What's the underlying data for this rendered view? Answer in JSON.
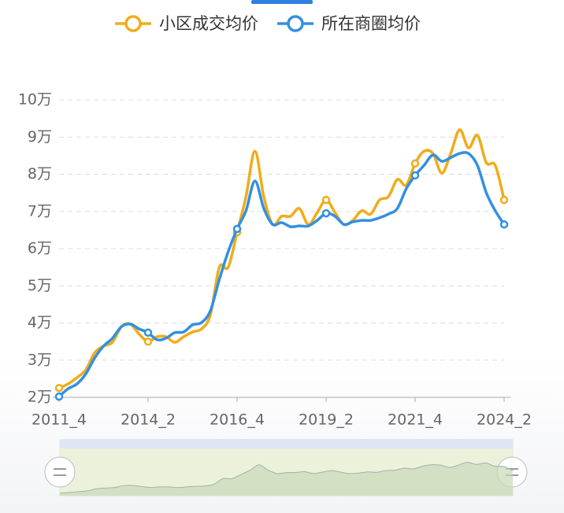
{
  "chart_data": {
    "type": "line",
    "categories": [
      "2011_4",
      null,
      null,
      null,
      null,
      null,
      null,
      null,
      null,
      null,
      "2014_2",
      null,
      null,
      null,
      null,
      null,
      null,
      null,
      null,
      null,
      "2016_4",
      null,
      null,
      null,
      null,
      null,
      null,
      null,
      null,
      null,
      "2019_2",
      null,
      null,
      null,
      null,
      null,
      null,
      null,
      null,
      null,
      "2021_4",
      null,
      null,
      null,
      null,
      null,
      null,
      null,
      null,
      null,
      "2024_2"
    ],
    "series": [
      {
        "name": "小区成交均价",
        "color": "#f0ac1a",
        "values": [
          2.25,
          2.36,
          2.53,
          2.74,
          3.2,
          3.38,
          3.48,
          3.9,
          3.97,
          3.7,
          3.5,
          3.63,
          3.63,
          3.48,
          3.63,
          3.76,
          3.84,
          4.22,
          5.5,
          5.5,
          6.44,
          7.4,
          8.62,
          7.4,
          6.65,
          6.87,
          6.87,
          7.08,
          6.65,
          6.97,
          7.31,
          6.97,
          6.65,
          6.76,
          7.02,
          6.93,
          7.31,
          7.4,
          7.86,
          7.71,
          8.29,
          8.62,
          8.56,
          8.03,
          8.56,
          9.2,
          8.71,
          9.05,
          8.31,
          8.24,
          7.31
        ]
      },
      {
        "name": "所在商圈均价",
        "color": "#3390e0",
        "values": [
          2.02,
          2.23,
          2.36,
          2.63,
          3.06,
          3.38,
          3.59,
          3.9,
          3.97,
          3.84,
          3.74,
          3.55,
          3.59,
          3.74,
          3.76,
          3.95,
          4.01,
          4.33,
          5.17,
          5.92,
          6.53,
          7.02,
          7.82,
          7.08,
          6.65,
          6.7,
          6.59,
          6.61,
          6.61,
          6.76,
          6.95,
          6.87,
          6.65,
          6.72,
          6.76,
          6.76,
          6.83,
          6.93,
          7.08,
          7.61,
          7.97,
          8.24,
          8.52,
          8.35,
          8.45,
          8.56,
          8.56,
          8.24,
          7.5,
          7.02,
          6.65
        ]
      }
    ],
    "ylim": [
      2,
      10
    ],
    "yticks": [
      {
        "value": 2,
        "label": "2万"
      },
      {
        "value": 3,
        "label": "3万"
      },
      {
        "value": 4,
        "label": "4万"
      },
      {
        "value": 5,
        "label": "5万"
      },
      {
        "value": 6,
        "label": "6万"
      },
      {
        "value": 7,
        "label": "7万"
      },
      {
        "value": 8,
        "label": "8万"
      },
      {
        "value": 9,
        "label": "9万"
      },
      {
        "value": 10,
        "label": "10万"
      }
    ],
    "grid": true,
    "legend": "top"
  }
}
